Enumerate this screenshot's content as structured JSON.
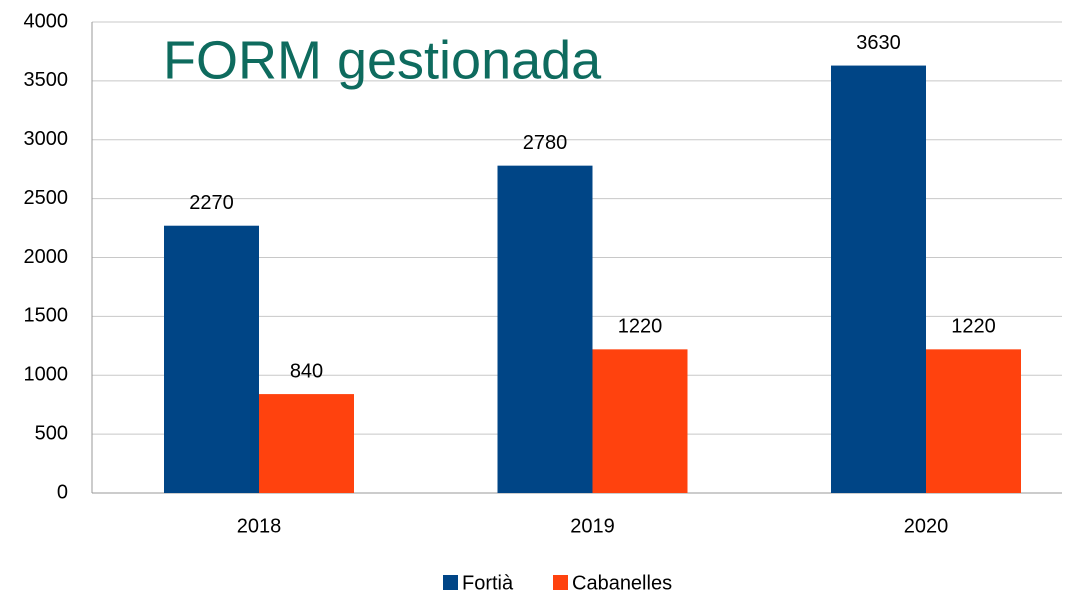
{
  "chart_data": {
    "type": "bar",
    "title": "FORM gestionada",
    "categories": [
      "2018",
      "2019",
      "2020"
    ],
    "series": [
      {
        "name": "Fortià",
        "color": "#004586",
        "values": [
          2270,
          2780,
          3630
        ]
      },
      {
        "name": "Cabanelles",
        "color": "#ff420e",
        "values": [
          840,
          1220,
          1220
        ]
      }
    ],
    "ylim": [
      0,
      4000
    ],
    "yticks": [
      0,
      500,
      1000,
      1500,
      2000,
      2500,
      3000,
      3500,
      4000
    ],
    "grid": true,
    "legend": "bottom"
  }
}
